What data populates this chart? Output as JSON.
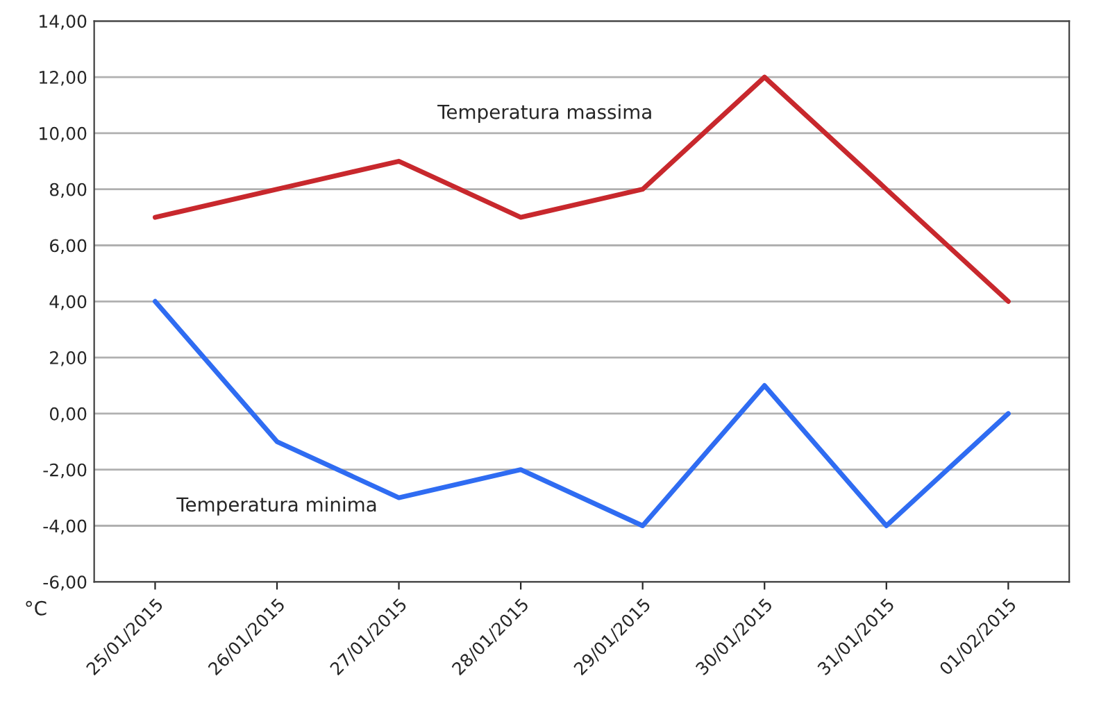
{
  "chart_data": {
    "type": "line",
    "ylabel": "°C",
    "categories": [
      "25/01/2015",
      "26/01/2015",
      "27/01/2015",
      "28/01/2015",
      "29/01/2015",
      "30/01/2015",
      "31/01/2015",
      "01/02/2015"
    ],
    "series": [
      {
        "name": "Temperatura massima",
        "color": "#c8282d",
        "values": [
          7,
          8,
          9,
          7,
          8,
          12,
          8,
          4
        ]
      },
      {
        "name": "Temperatura minima",
        "color": "#2f6cf2",
        "values": [
          4,
          -1,
          -3,
          -2,
          -4,
          1,
          -4,
          0
        ]
      }
    ],
    "ylim": [
      -6,
      14
    ],
    "yticks": [
      {
        "value": -6,
        "label": "-6,00"
      },
      {
        "value": -4,
        "label": "-4,00"
      },
      {
        "value": -2,
        "label": "-2,00"
      },
      {
        "value": 0,
        "label": "0,00"
      },
      {
        "value": 2,
        "label": "2,00"
      },
      {
        "value": 4,
        "label": "4,00"
      },
      {
        "value": 6,
        "label": "6,00"
      },
      {
        "value": 8,
        "label": "8,00"
      },
      {
        "value": 10,
        "label": "10,00"
      },
      {
        "value": 12,
        "label": "12,00"
      },
      {
        "value": 14,
        "label": "14,00"
      }
    ],
    "grid": "y",
    "legend": false,
    "marker": "none",
    "line_style": "solid"
  }
}
